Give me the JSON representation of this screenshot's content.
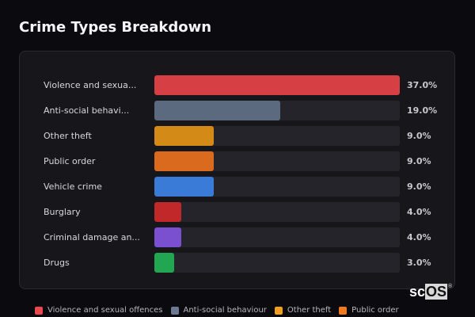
{
  "title": "Crime Types Breakdown",
  "chart_data": {
    "type": "bar",
    "orientation": "horizontal",
    "title": "Crime Types Breakdown",
    "categories": [
      "Violence and sexual offences",
      "Anti-social behaviour",
      "Other theft",
      "Public order",
      "Vehicle crime",
      "Burglary",
      "Criminal damage and arson",
      "Drugs"
    ],
    "display_labels": [
      "Violence and sexua...",
      "Anti-social behavi...",
      "Other theft",
      "Public order",
      "Vehicle crime",
      "Burglary",
      "Criminal damage an...",
      "Drugs"
    ],
    "values": [
      37.0,
      19.0,
      9.0,
      9.0,
      9.0,
      4.0,
      4.0,
      3.0
    ],
    "value_labels": [
      "37.0%",
      "19.0%",
      "9.0%",
      "9.0%",
      "9.0%",
      "4.0%",
      "4.0%",
      "3.0%"
    ],
    "colors": [
      "#d64045",
      "#5c6a80",
      "#d48a16",
      "#d96a1e",
      "#3b7bd8",
      "#c0282a",
      "#7a4fd0",
      "#22a652"
    ],
    "unit": "%",
    "max": 37.0,
    "legend_position": "bottom",
    "grid": false
  },
  "legend": [
    {
      "label": "Violence and sexual offences",
      "color": "#e84a4f"
    },
    {
      "label": "Anti-social behaviour",
      "color": "#6b7a92"
    },
    {
      "label": "Other theft",
      "color": "#f0a21c"
    },
    {
      "label": "Public order",
      "color": "#f07a22"
    }
  ],
  "logo": {
    "sc": "sc",
    "os": "OS",
    "reg": "®"
  }
}
